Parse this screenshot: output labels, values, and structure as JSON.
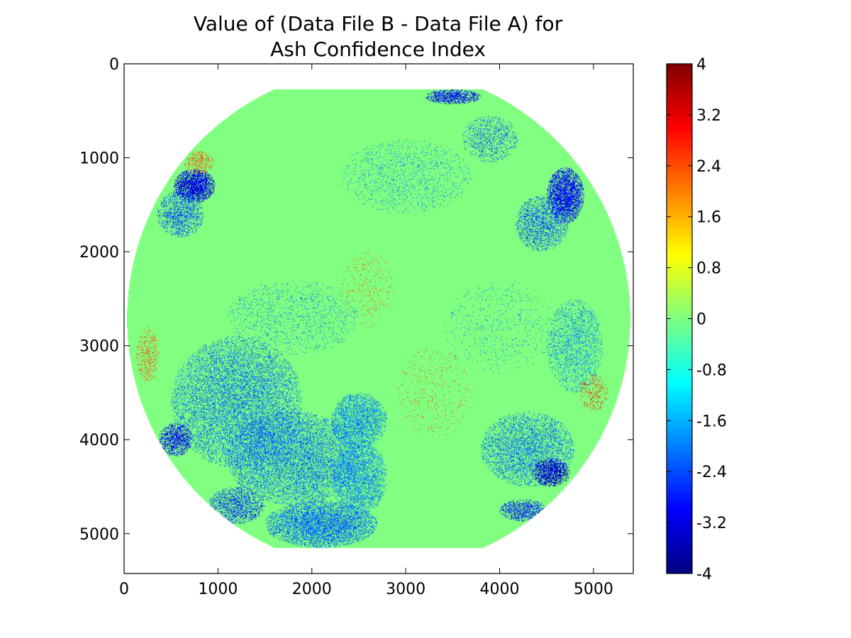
{
  "chart_data": {
    "type": "heatmap",
    "title_lines": [
      "Value of (Data File B - Data File A) for",
      "Ash Confidence Index"
    ],
    "xlabel": "",
    "ylabel": "",
    "x_range": [
      0,
      5424
    ],
    "y_range": [
      0,
      5424
    ],
    "y_inverted": true,
    "x_ticks": [
      0,
      1000,
      2000,
      3000,
      4000,
      5000
    ],
    "x_tick_labels": [
      "0",
      "1000",
      "2000",
      "3000",
      "4000",
      "5000"
    ],
    "y_ticks": [
      0,
      1000,
      2000,
      3000,
      4000,
      5000
    ],
    "y_tick_labels": [
      "0",
      "1000",
      "2000",
      "3000",
      "4000",
      "5000"
    ],
    "grid": false,
    "colormap": "jet",
    "colorbar": {
      "placement": "right",
      "range": [
        -4,
        4
      ],
      "ticks": [
        4,
        3.2,
        2.4,
        1.6,
        0.8,
        0,
        -0.8,
        -1.6,
        -2.4,
        -3.2,
        -4
      ],
      "tick_labels": [
        "4",
        "3.2",
        "2.4",
        "1.6",
        "0.8",
        "0",
        "-0.8",
        "-1.6",
        "-2.4",
        "-3.2",
        "-4"
      ]
    },
    "background_value": 0,
    "disk": {
      "center": [
        2712,
        2712
      ],
      "radius": 2680,
      "clip_top": 270,
      "clip_bottom": 5150
    },
    "regions": [
      {
        "x": 750,
        "y": 1300,
        "rx": 220,
        "ry": 180,
        "value": -3.2,
        "density": 0.85
      },
      {
        "x": 800,
        "y": 1050,
        "rx": 160,
        "ry": 120,
        "value": 2.4,
        "density": 0.35
      },
      {
        "x": 600,
        "y": 1600,
        "rx": 250,
        "ry": 250,
        "value": -2.4,
        "density": 0.45
      },
      {
        "x": 4700,
        "y": 1400,
        "rx": 200,
        "ry": 300,
        "value": -3.0,
        "density": 0.8
      },
      {
        "x": 4450,
        "y": 1700,
        "rx": 280,
        "ry": 300,
        "value": -2.4,
        "density": 0.45
      },
      {
        "x": 3500,
        "y": 350,
        "rx": 300,
        "ry": 80,
        "value": -3.0,
        "density": 0.7
      },
      {
        "x": 3900,
        "y": 800,
        "rx": 300,
        "ry": 250,
        "value": -2.4,
        "density": 0.25
      },
      {
        "x": 1200,
        "y": 3600,
        "rx": 700,
        "ry": 700,
        "value": -2.2,
        "density": 0.4
      },
      {
        "x": 1800,
        "y": 4200,
        "rx": 700,
        "ry": 500,
        "value": -2.2,
        "density": 0.45
      },
      {
        "x": 2500,
        "y": 3800,
        "rx": 300,
        "ry": 300,
        "value": -2.0,
        "density": 0.55
      },
      {
        "x": 2500,
        "y": 4400,
        "rx": 300,
        "ry": 400,
        "value": -2.0,
        "density": 0.5
      },
      {
        "x": 2100,
        "y": 4900,
        "rx": 600,
        "ry": 250,
        "value": -2.2,
        "density": 0.65
      },
      {
        "x": 1200,
        "y": 4700,
        "rx": 300,
        "ry": 200,
        "value": -2.6,
        "density": 0.5
      },
      {
        "x": 550,
        "y": 4000,
        "rx": 180,
        "ry": 180,
        "value": -3.0,
        "density": 0.6
      },
      {
        "x": 4300,
        "y": 4100,
        "rx": 500,
        "ry": 400,
        "value": -2.2,
        "density": 0.4
      },
      {
        "x": 4550,
        "y": 4350,
        "rx": 200,
        "ry": 150,
        "value": -3.4,
        "density": 0.7
      },
      {
        "x": 4250,
        "y": 4750,
        "rx": 250,
        "ry": 120,
        "value": -2.8,
        "density": 0.55
      },
      {
        "x": 4800,
        "y": 3000,
        "rx": 300,
        "ry": 500,
        "value": -2.0,
        "density": 0.3
      },
      {
        "x": 5000,
        "y": 3500,
        "rx": 150,
        "ry": 200,
        "value": 2.8,
        "density": 0.2
      },
      {
        "x": 3000,
        "y": 1200,
        "rx": 700,
        "ry": 400,
        "value": -2.0,
        "density": 0.12
      },
      {
        "x": 2600,
        "y": 2400,
        "rx": 300,
        "ry": 400,
        "value": 2.4,
        "density": 0.06
      },
      {
        "x": 3300,
        "y": 3500,
        "rx": 400,
        "ry": 500,
        "value": 2.4,
        "density": 0.05
      },
      {
        "x": 250,
        "y": 3100,
        "rx": 120,
        "ry": 300,
        "value": 2.4,
        "density": 0.25
      },
      {
        "x": 4000,
        "y": 2800,
        "rx": 600,
        "ry": 500,
        "value": -2.0,
        "density": 0.05
      },
      {
        "x": 1800,
        "y": 2700,
        "rx": 700,
        "ry": 400,
        "value": -2.0,
        "density": 0.12
      }
    ]
  }
}
